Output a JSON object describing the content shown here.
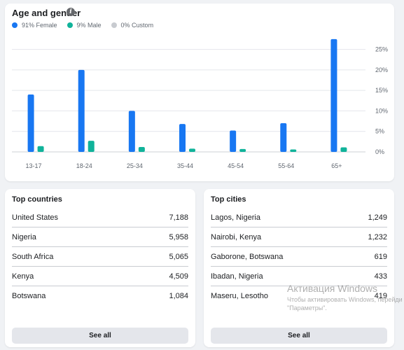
{
  "age_card": {
    "title": "Age and gender",
    "info_icon_glyph": "i",
    "legend": [
      {
        "label": "91% Female",
        "color": "#1877f2"
      },
      {
        "label": "9% Male",
        "color": "#10b39a"
      },
      {
        "label": "0% Custom",
        "color": "#c8cbd0"
      }
    ]
  },
  "chart_data": {
    "type": "bar",
    "categories": [
      "13-17",
      "18-24",
      "25-34",
      "35-44",
      "45-54",
      "55-64",
      "65+"
    ],
    "series": [
      {
        "name": "Female",
        "color": "#1877f2",
        "values": [
          14,
          20,
          10,
          6.8,
          5.2,
          7,
          27.5
        ]
      },
      {
        "name": "Male",
        "color": "#10b39a",
        "values": [
          1.4,
          2.7,
          1.2,
          0.8,
          0.7,
          0.6,
          1.1
        ]
      }
    ],
    "y_ticks": [
      "0%",
      "5%",
      "10%",
      "15%",
      "20%",
      "25%"
    ],
    "ylim": [
      0,
      28
    ],
    "grid": true
  },
  "countries": {
    "title": "Top countries",
    "rows": [
      {
        "name": "United States",
        "value": "7,188"
      },
      {
        "name": "Nigeria",
        "value": "5,958"
      },
      {
        "name": "South Africa",
        "value": "5,065"
      },
      {
        "name": "Kenya",
        "value": "4,509"
      },
      {
        "name": "Botswana",
        "value": "1,084"
      }
    ],
    "see_all": "See all"
  },
  "cities": {
    "title": "Top cities",
    "rows": [
      {
        "name": "Lagos, Nigeria",
        "value": "1,249"
      },
      {
        "name": "Nairobi, Kenya",
        "value": "1,232"
      },
      {
        "name": "Gaborone, Botswana",
        "value": "619"
      },
      {
        "name": "Ibadan, Nigeria",
        "value": "433"
      },
      {
        "name": "Maseru, Lesotho",
        "value": "419"
      }
    ],
    "see_all": "See all"
  },
  "watermark": {
    "title": "Активация Windows",
    "subtitle": "Чтобы активировать Windows, перейди\n\"Параметры\"."
  }
}
